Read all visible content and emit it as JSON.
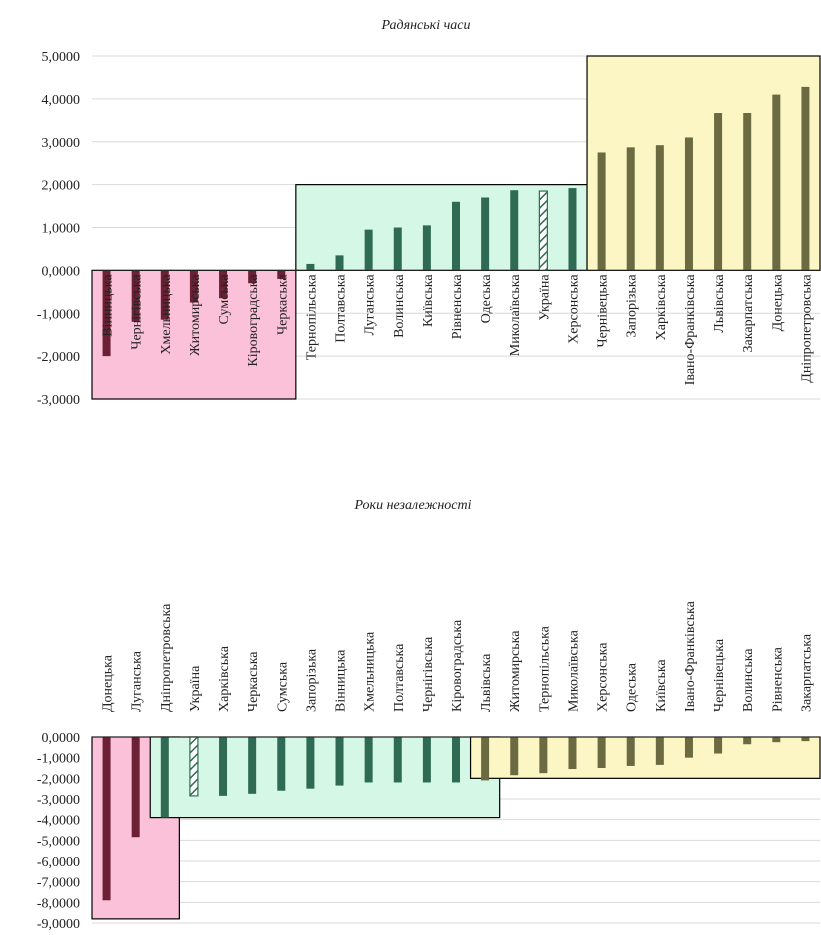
{
  "chart_data": [
    {
      "type": "bar",
      "title": "Радянські часи",
      "ylim": [
        -3,
        5
      ],
      "y_ticks": [
        "5,0000",
        "4,0000",
        "3,0000",
        "2,0000",
        "1,0000",
        "0,0000",
        "-1,0000",
        "-2,0000",
        "-3,0000"
      ],
      "grid": true,
      "categories": [
        "Вінницька",
        "Чернігівська",
        "Хмельницька",
        "Житомирська",
        "Сумська",
        "Кіровоградська",
        "Черкаська",
        "Тернопільська",
        "Полтавська",
        "Луганська",
        "Волинська",
        "Київська",
        "Рівненська",
        "Одеська",
        "Миколаївська",
        "Україна",
        "Херсонська",
        "Чернівецька",
        "Запорізька",
        "Харківська",
        "Івано-Франківська",
        "Львівська",
        "Закарпатська",
        "Донецька",
        "Дніпропетровська"
      ],
      "values": [
        -2.0,
        -1.2,
        -1.15,
        -0.75,
        -0.65,
        -0.3,
        -0.2,
        0.15,
        0.35,
        0.95,
        1.0,
        1.05,
        1.6,
        1.7,
        1.87,
        1.85,
        1.92,
        2.75,
        2.87,
        2.92,
        3.1,
        3.67,
        3.67,
        4.1,
        4.28
      ],
      "groups": [
        {
          "from": 0,
          "to": 6,
          "ymin": -3,
          "ymax": 0,
          "fill": "#fbc1d8",
          "bar_color": "#6b2036"
        },
        {
          "from": 7,
          "to": 16,
          "ymin": 0,
          "ymax": 2,
          "fill": "#d4f7e6",
          "bar_color": "#2f6b54"
        },
        {
          "from": 17,
          "to": 24,
          "ymin": 0,
          "ymax": 5,
          "fill": "#fbf6c4",
          "bar_color": "#6b6a40"
        }
      ],
      "highlight": {
        "category": "Україна",
        "pattern": "hatched"
      }
    },
    {
      "type": "bar",
      "title": "Роки незалежності",
      "ylim": [
        -9,
        0
      ],
      "y_ticks": [
        "0,0000",
        "-1,0000",
        "-2,0000",
        "-3,0000",
        "-4,0000",
        "-5,0000",
        "-6,0000",
        "-7,0000",
        "-8,0000",
        "-9,0000"
      ],
      "grid": true,
      "categories": [
        "Донецька",
        "Луганська",
        "Дніпропетровська",
        "Україна",
        "Харківська",
        "Черкаська",
        "Сумська",
        "Запорізька",
        "Вінницька",
        "Хмельницька",
        "Полтавська",
        "Чернігівська",
        "Кіровоградська",
        "Львівська",
        "Житомирська",
        "Тернопільська",
        "Миколаївська",
        "Херсонська",
        "Одеська",
        "Київська",
        "Івано-Франківська",
        "Чернівецька",
        "Волинська",
        "Рівненська",
        "Закарпатська"
      ],
      "values": [
        -7.9,
        -4.85,
        -3.9,
        -2.85,
        -2.85,
        -2.75,
        -2.6,
        -2.5,
        -2.35,
        -2.2,
        -2.2,
        -2.2,
        -2.2,
        -2.1,
        -1.85,
        -1.75,
        -1.55,
        -1.5,
        -1.4,
        -1.35,
        -1.0,
        -0.8,
        -0.35,
        -0.25,
        -0.2
      ],
      "groups": [
        {
          "from": 0,
          "to": 2,
          "ymin": -8.8,
          "ymax": 0,
          "fill": "#fbc1d8",
          "bar_color": "#6b2036"
        },
        {
          "from": 2,
          "to": 13,
          "ymin": -3.9,
          "ymax": 0,
          "fill": "#d4f7e6",
          "bar_color": "#2f6b54"
        },
        {
          "from": 13,
          "to": 24,
          "ymin": -2.0,
          "ymax": 0,
          "fill": "#fbf6c4",
          "bar_color": "#6b6a40"
        }
      ],
      "highlight": {
        "category": "Україна",
        "pattern": "hatched"
      }
    }
  ]
}
